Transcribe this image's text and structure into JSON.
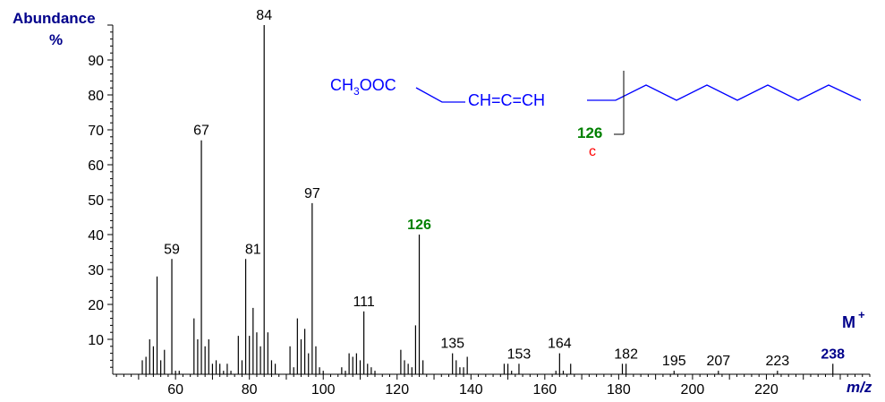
{
  "chart_data": {
    "type": "bar",
    "ylabel": "Abundance",
    "ylabel_unit": "%",
    "xlabel": "m/z",
    "xlim": [
      43,
      248
    ],
    "ylim": [
      0,
      100
    ],
    "grid": false,
    "x_ticks": [
      60,
      80,
      100,
      120,
      140,
      160,
      180,
      200,
      220
    ],
    "y_ticks": [
      10,
      20,
      30,
      40,
      50,
      60,
      70,
      80,
      90
    ],
    "peaks": [
      {
        "mz": 51,
        "y": 4
      },
      {
        "mz": 52,
        "y": 5
      },
      {
        "mz": 53,
        "y": 10
      },
      {
        "mz": 54,
        "y": 8
      },
      {
        "mz": 55,
        "y": 28
      },
      {
        "mz": 56,
        "y": 4
      },
      {
        "mz": 57,
        "y": 7
      },
      {
        "mz": 59,
        "y": 33
      },
      {
        "mz": 60,
        "y": 1
      },
      {
        "mz": 61,
        "y": 1
      },
      {
        "mz": 65,
        "y": 16
      },
      {
        "mz": 66,
        "y": 10
      },
      {
        "mz": 67,
        "y": 67
      },
      {
        "mz": 68,
        "y": 8
      },
      {
        "mz": 69,
        "y": 10
      },
      {
        "mz": 70,
        "y": 3
      },
      {
        "mz": 71,
        "y": 4
      },
      {
        "mz": 72,
        "y": 3
      },
      {
        "mz": 73,
        "y": 1
      },
      {
        "mz": 74,
        "y": 3
      },
      {
        "mz": 75,
        "y": 1
      },
      {
        "mz": 77,
        "y": 11
      },
      {
        "mz": 78,
        "y": 4
      },
      {
        "mz": 79,
        "y": 33
      },
      {
        "mz": 80,
        "y": 11
      },
      {
        "mz": 81,
        "y": 19
      },
      {
        "mz": 82,
        "y": 12
      },
      {
        "mz": 83,
        "y": 8
      },
      {
        "mz": 84,
        "y": 100
      },
      {
        "mz": 85,
        "y": 12
      },
      {
        "mz": 86,
        "y": 4
      },
      {
        "mz": 87,
        "y": 3
      },
      {
        "mz": 91,
        "y": 8
      },
      {
        "mz": 92,
        "y": 2
      },
      {
        "mz": 93,
        "y": 16
      },
      {
        "mz": 94,
        "y": 10
      },
      {
        "mz": 95,
        "y": 13
      },
      {
        "mz": 96,
        "y": 6
      },
      {
        "mz": 97,
        "y": 49
      },
      {
        "mz": 98,
        "y": 8
      },
      {
        "mz": 99,
        "y": 2
      },
      {
        "mz": 100,
        "y": 1
      },
      {
        "mz": 105,
        "y": 2
      },
      {
        "mz": 106,
        "y": 1
      },
      {
        "mz": 107,
        "y": 6
      },
      {
        "mz": 108,
        "y": 5
      },
      {
        "mz": 109,
        "y": 6
      },
      {
        "mz": 110,
        "y": 4
      },
      {
        "mz": 111,
        "y": 18
      },
      {
        "mz": 112,
        "y": 3
      },
      {
        "mz": 113,
        "y": 2
      },
      {
        "mz": 114,
        "y": 1
      },
      {
        "mz": 121,
        "y": 7
      },
      {
        "mz": 122,
        "y": 4
      },
      {
        "mz": 123,
        "y": 3
      },
      {
        "mz": 124,
        "y": 2
      },
      {
        "mz": 125,
        "y": 14
      },
      {
        "mz": 126,
        "y": 40
      },
      {
        "mz": 127,
        "y": 4
      },
      {
        "mz": 135,
        "y": 6
      },
      {
        "mz": 136,
        "y": 4
      },
      {
        "mz": 137,
        "y": 2
      },
      {
        "mz": 138,
        "y": 2
      },
      {
        "mz": 139,
        "y": 5
      },
      {
        "mz": 149,
        "y": 3
      },
      {
        "mz": 150,
        "y": 3
      },
      {
        "mz": 151,
        "y": 1
      },
      {
        "mz": 153,
        "y": 3
      },
      {
        "mz": 163,
        "y": 1
      },
      {
        "mz": 164,
        "y": 6
      },
      {
        "mz": 165,
        "y": 1
      },
      {
        "mz": 167,
        "y": 3
      },
      {
        "mz": 181,
        "y": 3
      },
      {
        "mz": 182,
        "y": 3
      },
      {
        "mz": 195,
        "y": 1
      },
      {
        "mz": 207,
        "y": 1
      },
      {
        "mz": 223,
        "y": 1
      },
      {
        "mz": 238,
        "y": 3
      }
    ],
    "peak_labels": [
      {
        "mz": 59,
        "text": "59",
        "y": 33,
        "color": "#000000",
        "bold": false
      },
      {
        "mz": 67,
        "text": "67",
        "y": 67,
        "color": "#000000",
        "bold": false
      },
      {
        "mz": 81,
        "text": "81",
        "y": 33,
        "color": "#000000",
        "bold": false
      },
      {
        "mz": 84,
        "text": "84",
        "y": 100,
        "color": "#000000",
        "bold": false
      },
      {
        "mz": 97,
        "text": "97",
        "y": 49,
        "color": "#000000",
        "bold": false
      },
      {
        "mz": 111,
        "text": "111",
        "y": 18,
        "color": "#000000",
        "bold": false
      },
      {
        "mz": 126,
        "text": "126",
        "y": 40,
        "color": "#008000",
        "bold": true
      },
      {
        "mz": 135,
        "text": "135",
        "y": 6,
        "color": "#000000",
        "bold": false
      },
      {
        "mz": 153,
        "text": "153",
        "y": 3,
        "color": "#000000",
        "bold": false
      },
      {
        "mz": 164,
        "text": "164",
        "y": 6,
        "color": "#000000",
        "bold": false
      },
      {
        "mz": 182,
        "text": "182",
        "y": 3,
        "color": "#000000",
        "bold": false
      },
      {
        "mz": 195,
        "text": "195",
        "y": 1,
        "color": "#000000",
        "bold": false
      },
      {
        "mz": 207,
        "text": "207",
        "y": 1,
        "color": "#000000",
        "bold": false
      },
      {
        "mz": 223,
        "text": "223",
        "y": 1,
        "color": "#000000",
        "bold": false
      },
      {
        "mz": 238,
        "text": "238",
        "y": 3,
        "color": "#00008b",
        "bold": true
      }
    ],
    "molecular_ion_label": "M",
    "molecular_ion_sup": "+"
  },
  "structure": {
    "ester_group": "CH3OOC",
    "ester_prefix": "CH",
    "ester_sub": "3",
    "ester_suffix": "OOC",
    "allene": "CH=C=CH",
    "cleavage_mass": "126",
    "cleavage_letter": "c"
  },
  "colors": {
    "axis": "#000000",
    "peaks": "#000000",
    "title_blue": "#00008b",
    "structure_blue": "#0000ff",
    "fragment_green": "#008000",
    "cleavage_red": "#ff0000"
  }
}
